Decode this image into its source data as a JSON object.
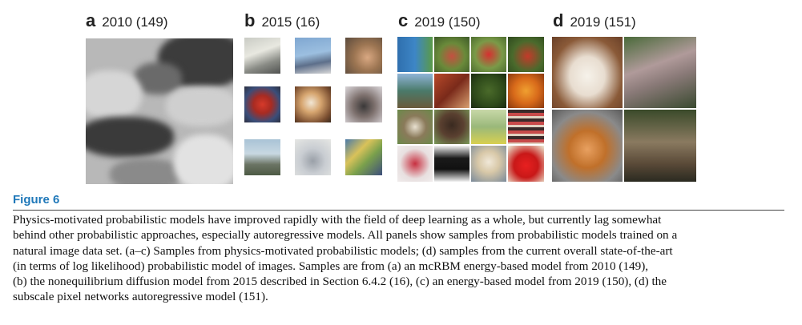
{
  "panels": [
    {
      "letter": "a",
      "label": "2010 (149)"
    },
    {
      "letter": "b",
      "label": "2015 (16)"
    },
    {
      "letter": "c",
      "label": "2019 (150)"
    },
    {
      "letter": "d",
      "label": "2019 (151)"
    }
  ],
  "figure_title": "Figure 6",
  "caption_lines": [
    "Physics-motivated probabilistic models have improved rapidly with the field of deep learning as a whole, but currently lag somewhat",
    "behind other probabilistic approaches, especially autoregressive models. All panels show samples from probabilistic models trained on a",
    "natural image data set. (a–c) Samples from physics-motivated probabilistic models; (d) samples from the current overall state-of-the-art",
    "(in terms of log likelihood) probabilistic model of images. Samples are from (a) an mcRBM energy-based model from 2010 (149),",
    "(b) the nonequilibrium diffusion model from 2015 described in Section 6.4.2 (16), (c) an energy-based model from 2019 (150), (d) the",
    "subscale pixel networks autoregressive model (151)."
  ],
  "colors": {
    "title": "#1f78b9",
    "text": "#111111"
  }
}
